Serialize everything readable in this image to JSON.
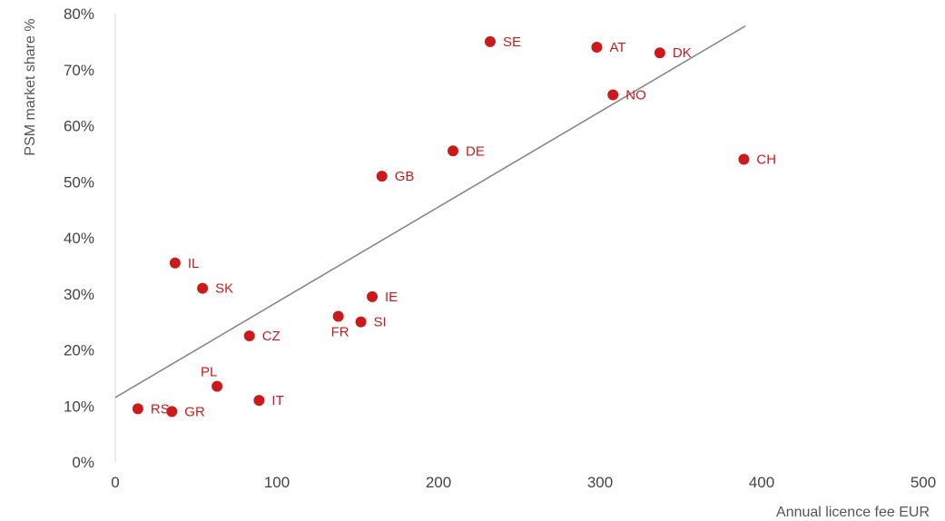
{
  "chart_data": {
    "type": "scatter",
    "xlabel": "Annual licence fee EUR",
    "ylabel": "PSM market share %",
    "xlim": [
      0,
      500
    ],
    "ylim": [
      0,
      80
    ],
    "x_ticks": [
      0,
      100,
      200,
      300,
      400,
      500
    ],
    "y_ticks": [
      0,
      10,
      20,
      30,
      40,
      50,
      60,
      70,
      80
    ],
    "y_tick_labels": [
      "0%",
      "10%",
      "20%",
      "30%",
      "40%",
      "50%",
      "60%",
      "70%",
      "80%"
    ],
    "point_color": "#cc1a1a",
    "trend_color": "#888888",
    "trendline": {
      "x": [
        0,
        390
      ],
      "y": [
        11.5,
        77.8
      ]
    },
    "points": [
      {
        "label": "SE",
        "x": 232,
        "y": 75.0,
        "label_pos": "right"
      },
      {
        "label": "AT",
        "x": 298,
        "y": 74.0,
        "label_pos": "right"
      },
      {
        "label": "DK",
        "x": 337,
        "y": 73.0,
        "label_pos": "right"
      },
      {
        "label": "NO",
        "x": 308,
        "y": 65.5,
        "label_pos": "right"
      },
      {
        "label": "DE",
        "x": 209,
        "y": 55.5,
        "label_pos": "right"
      },
      {
        "label": "CH",
        "x": 389,
        "y": 54.0,
        "label_pos": "right"
      },
      {
        "label": "GB",
        "x": 165,
        "y": 51.0,
        "label_pos": "right"
      },
      {
        "label": "IL",
        "x": 37,
        "y": 35.5,
        "label_pos": "right"
      },
      {
        "label": "SK",
        "x": 54,
        "y": 31.0,
        "label_pos": "right"
      },
      {
        "label": "IE",
        "x": 159,
        "y": 29.5,
        "label_pos": "right"
      },
      {
        "label": "FR",
        "x": 138,
        "y": 26.0,
        "label_pos": "below-left"
      },
      {
        "label": "SI",
        "x": 152,
        "y": 25.0,
        "label_pos": "right"
      },
      {
        "label": "CZ",
        "x": 83,
        "y": 22.5,
        "label_pos": "right"
      },
      {
        "label": "PL",
        "x": 63,
        "y": 13.5,
        "label_pos": "above-left"
      },
      {
        "label": "IT",
        "x": 89,
        "y": 11.0,
        "label_pos": "right"
      },
      {
        "label": "RS",
        "x": 14,
        "y": 9.5,
        "label_pos": "right"
      },
      {
        "label": "GR",
        "x": 35,
        "y": 9.0,
        "label_pos": "right"
      }
    ]
  }
}
